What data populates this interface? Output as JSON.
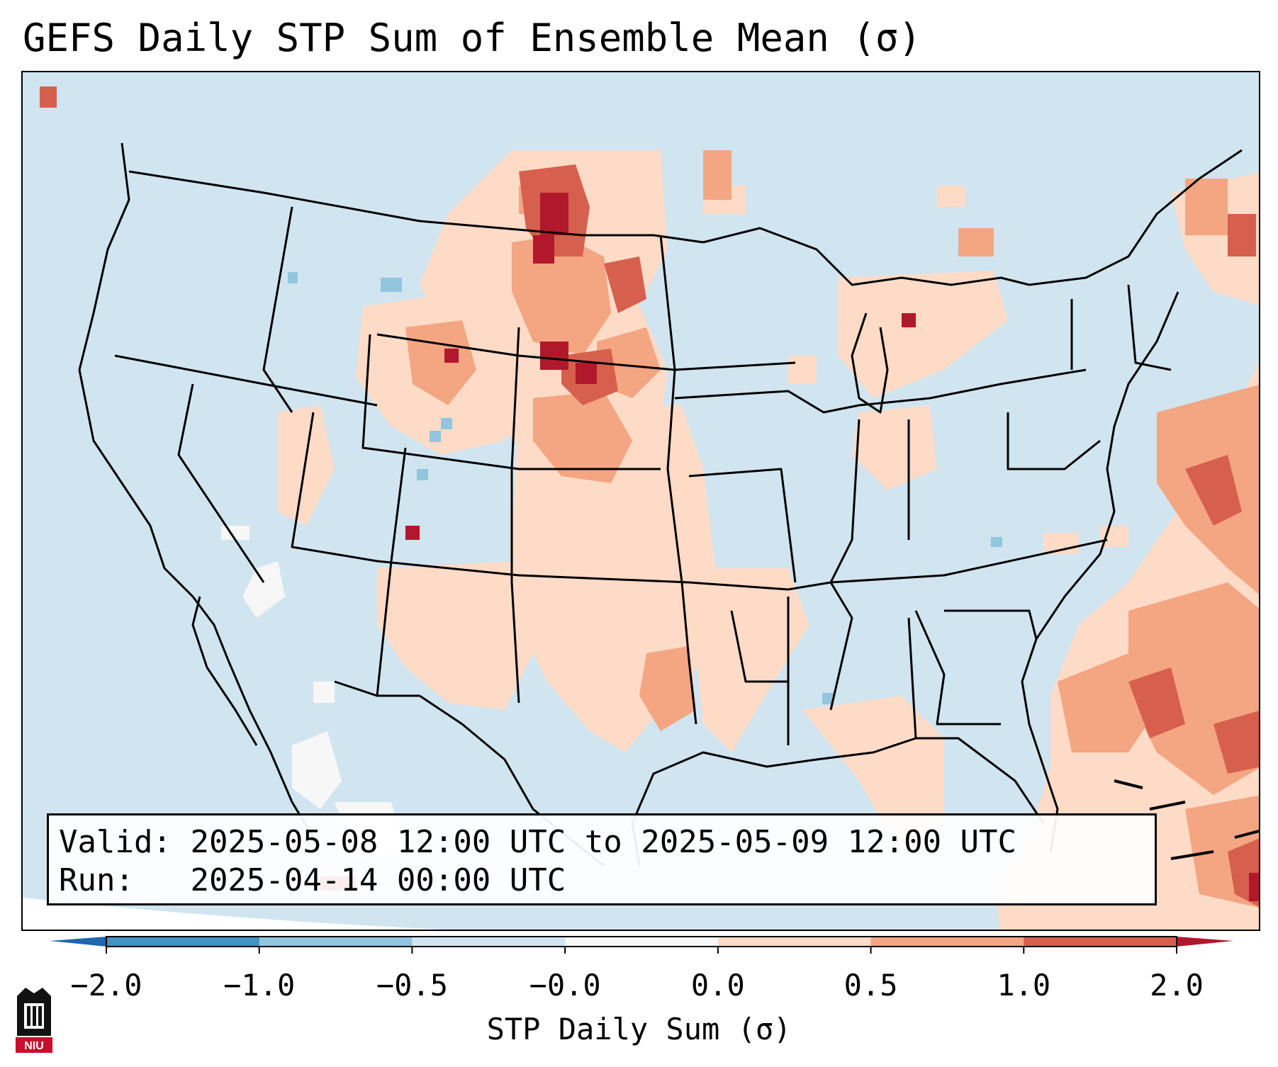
{
  "title": "GEFS Daily STP Sum of Ensemble Mean (σ)",
  "info": {
    "valid_label": "Valid:",
    "valid_value": "2025-05-08 12:00 UTC to 2025-05-09 12:00 UTC",
    "run_label": "Run:",
    "run_value": "2025-04-14 00:00 UTC"
  },
  "colorbar": {
    "label": "STP Daily Sum (σ)",
    "ticks": [
      "−2.0",
      "−1.0",
      "−0.5",
      "−0.0",
      "0.0",
      "0.5",
      "1.0",
      "2.0"
    ],
    "bin_colors": [
      "#4393c3",
      "#92c5de",
      "#d1e5f0",
      "#f7f7f7",
      "#fddbc7",
      "#f4a582",
      "#d6604d"
    ],
    "under_color": "#2166ac",
    "over_color": "#b2182b"
  },
  "map": {
    "background_color": "#d1e5f0",
    "region": "Continental United States"
  },
  "logo_text": "NIU"
}
